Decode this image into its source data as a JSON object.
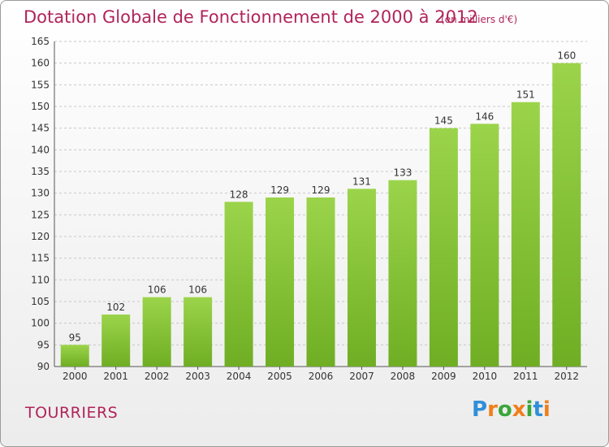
{
  "chart_data": {
    "type": "bar",
    "title": "Dotation Globale de Fonctionnement de 2000 à 2012",
    "subtitle": "(en milliers d'€)",
    "categories": [
      "2000",
      "2001",
      "2002",
      "2003",
      "2004",
      "2005",
      "2006",
      "2007",
      "2008",
      "2009",
      "2010",
      "2011",
      "2012"
    ],
    "values": [
      95,
      102,
      106,
      106,
      128,
      129,
      129,
      131,
      133,
      145,
      146,
      151,
      160
    ],
    "ylim": [
      90,
      165
    ],
    "yticks": [
      90,
      95,
      100,
      105,
      110,
      115,
      120,
      125,
      130,
      135,
      140,
      145,
      150,
      155,
      160,
      165
    ],
    "grid": "horizontal dashed",
    "bar_color": "#6fae24",
    "bar_color_light": "#9bd44a"
  },
  "footer": {
    "commune": "TOURRIERS",
    "logo_letters": [
      "P",
      "r",
      "o",
      "x",
      "i",
      "t",
      "i"
    ],
    "logo_colors": [
      "#2f8fd8",
      "#f07f1a",
      "#3aa63a",
      "#f07f1a",
      "#3aa63a",
      "#2f8fd8",
      "#f07f1a"
    ]
  }
}
